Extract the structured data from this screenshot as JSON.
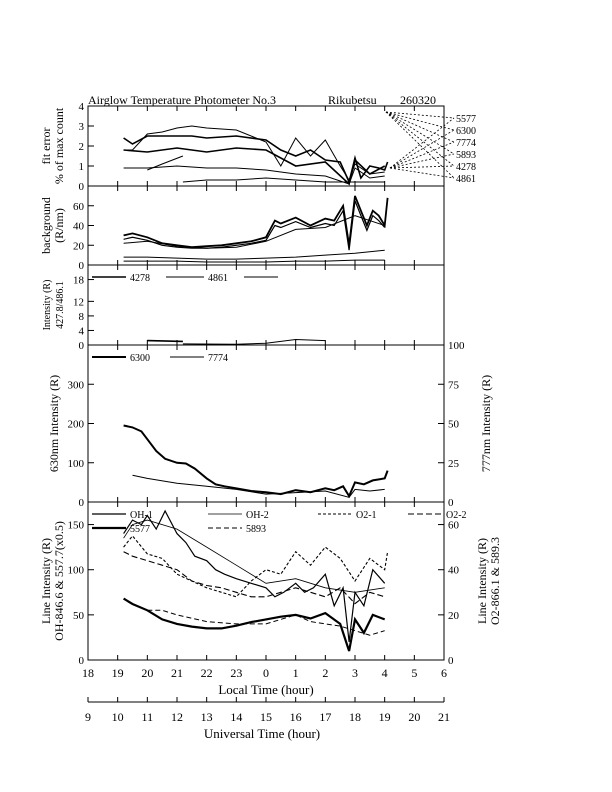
{
  "title": "Airglow Temperature Photometer No.3",
  "station": "Rikubetsu",
  "date_code": "260320",
  "local_time_axis": {
    "label": "Local Time (hour)",
    "ticks": [
      "18",
      "19",
      "20",
      "21",
      "22",
      "23",
      "0",
      "1",
      "2",
      "3",
      "4",
      "5",
      "6"
    ]
  },
  "ut_axis": {
    "label": "Universal Time (hour)",
    "ticks": [
      "9",
      "10",
      "11",
      "12",
      "13",
      "14",
      "15",
      "16",
      "17",
      "18",
      "19",
      "20",
      "21"
    ]
  },
  "chart_data": [
    {
      "type": "line",
      "panel": "fit-error",
      "ylabel": "fit error",
      "ylabel2": "% of max count",
      "ylim": [
        0,
        4
      ],
      "yticks": [
        "0",
        "1",
        "2",
        "3",
        "4"
      ],
      "legend": [
        "5577",
        "6300",
        "7774",
        "5893",
        "4278",
        "4861"
      ],
      "series": [
        {
          "name": "5577",
          "x": [
            19.2,
            19.5,
            20,
            21,
            21.5,
            22,
            23,
            0,
            0.5,
            1,
            1.5,
            2,
            2.5,
            2.8,
            3,
            3.2,
            3.5,
            3.8,
            4,
            4.1
          ],
          "y": [
            2.4,
            2.1,
            2.5,
            2.5,
            2.5,
            2.4,
            2.5,
            2.3,
            1.8,
            1.5,
            1.8,
            1.3,
            1.2,
            0.2,
            1.4,
            0.4,
            1.0,
            0.9,
            0.8,
            1.2
          ]
        },
        {
          "name": "6300",
          "x": [
            19.2,
            19.5,
            20,
            20.5,
            21,
            21.5,
            22,
            23,
            0,
            0.5,
            1,
            1.5,
            2,
            2.5,
            2.8,
            3,
            3.5,
            4
          ],
          "y": [
            1.8,
            1.8,
            2.6,
            2.7,
            2.9,
            3.0,
            2.9,
            2.8,
            2.2,
            1.0,
            2.4,
            1.5,
            2.3,
            1.0,
            0.3,
            1.1,
            0.6,
            0.7
          ]
        },
        {
          "name": "7774",
          "x": [
            19.2,
            20,
            21,
            22,
            23,
            0,
            1,
            2,
            2.8,
            3,
            3.5,
            4
          ],
          "y": [
            0.9,
            0.9,
            1.0,
            0.9,
            0.9,
            0.8,
            0.6,
            0.5,
            0.1,
            0.9,
            0.4,
            0.5
          ]
        },
        {
          "name": "5893",
          "x": [
            19.2,
            20,
            21,
            22,
            23,
            0,
            1,
            2,
            2.8,
            3,
            3.5,
            4
          ],
          "y": [
            1.8,
            1.7,
            1.9,
            1.7,
            1.9,
            1.8,
            1.0,
            1.2,
            0.1,
            1.3,
            0.6,
            1.0
          ]
        },
        {
          "name": "4278",
          "x": [
            20,
            20.5,
            21.2
          ],
          "y": [
            0.8,
            1.1,
            1.5
          ]
        },
        {
          "name": "4861",
          "x": [
            21.2,
            22,
            23,
            0,
            1,
            2,
            3,
            4
          ],
          "y": [
            0.2,
            0.3,
            0.3,
            0.4,
            0.3,
            0.2,
            0.2,
            0.2
          ]
        }
      ]
    },
    {
      "type": "line",
      "panel": "background",
      "ylabel": "background",
      "ylabel2": "(R/nm)",
      "ylim": [
        0,
        80
      ],
      "yticks": [
        "0",
        "20",
        "40",
        "60"
      ],
      "series": [
        {
          "name": "5577",
          "x": [
            19.2,
            19.5,
            20,
            20.5,
            21,
            21.5,
            22,
            22.5,
            23,
            23.5,
            0,
            0.3,
            0.5,
            1,
            1.5,
            2,
            2.3,
            2.6,
            2.8,
            3,
            3.2,
            3.4,
            3.6,
            3.8,
            4,
            4.1
          ],
          "y": [
            30,
            32,
            28,
            22,
            20,
            18,
            19,
            20,
            22,
            24,
            28,
            45,
            42,
            48,
            40,
            47,
            45,
            60,
            20,
            70,
            55,
            40,
            55,
            50,
            40,
            68
          ]
        },
        {
          "name": "6300",
          "x": [
            19.2,
            19.5,
            20,
            20.5,
            21,
            21.5,
            22,
            22.5,
            23,
            23.5,
            0,
            0.3,
            0.5,
            1,
            1.5,
            2,
            2.3,
            2.6,
            2.8,
            3,
            3.2,
            3.4,
            3.6,
            3.8,
            4
          ],
          "y": [
            26,
            28,
            25,
            20,
            18,
            17,
            17,
            18,
            20,
            22,
            25,
            40,
            38,
            44,
            38,
            42,
            40,
            55,
            15,
            65,
            50,
            35,
            50,
            45,
            38
          ]
        },
        {
          "name": "7774",
          "x": [
            19.2,
            20,
            21,
            22,
            23,
            0,
            1,
            2,
            3,
            4
          ],
          "y": [
            22,
            24,
            19,
            17,
            18,
            24,
            36,
            38,
            50,
            40
          ]
        },
        {
          "name": "4278",
          "x": [
            19.2,
            20,
            21,
            22,
            23,
            0,
            1,
            2,
            3,
            4
          ],
          "y": [
            8,
            8,
            7,
            6,
            6,
            7,
            8,
            10,
            12,
            15
          ]
        },
        {
          "name": "4861",
          "x": [
            19.2,
            20,
            21,
            22,
            23,
            0,
            1,
            2,
            3,
            4
          ],
          "y": [
            4,
            4,
            4,
            3,
            3,
            3,
            4,
            4,
            5,
            5
          ]
        }
      ]
    },
    {
      "type": "line",
      "panel": "intensity-4278-4861",
      "ylabel": "Intensity (R)",
      "ylabel2": "427.8/486.1",
      "ylim": [
        0,
        22
      ],
      "yticks": [
        "0",
        "4",
        "8",
        "12",
        "18"
      ],
      "legend": [
        "4278",
        "4861"
      ],
      "series": [
        {
          "name": "4278",
          "x": [
            20,
            21.2
          ],
          "y": [
            1.2,
            1.0
          ]
        },
        {
          "name": "4861",
          "x": [
            21.2,
            23,
            0,
            1,
            2
          ],
          "y": [
            0.3,
            0.2,
            0.5,
            1.5,
            1.2
          ]
        }
      ]
    },
    {
      "type": "line",
      "panel": "630-777",
      "ylabel": "630nm Intensity (R)",
      "ylabel_right": "777nm Intensity (R)",
      "ylim": [
        0,
        400
      ],
      "ylim_right": [
        0,
        100
      ],
      "yticks": [
        "0",
        "100",
        "200",
        "300"
      ],
      "yticks_right": [
        "0",
        "25",
        "50",
        "75",
        "100"
      ],
      "legend": [
        "6300",
        "7774"
      ],
      "series": [
        {
          "name": "6300",
          "x": [
            19.2,
            19.5,
            19.8,
            20,
            20.3,
            20.6,
            21,
            21.3,
            21.6,
            22,
            22.3,
            22.6,
            23,
            23.5,
            0,
            0.5,
            1,
            1.5,
            2,
            2.3,
            2.6,
            2.8,
            3,
            3.3,
            3.6,
            4,
            4.1
          ],
          "y": [
            195,
            190,
            180,
            160,
            130,
            110,
            100,
            98,
            85,
            60,
            45,
            40,
            35,
            28,
            25,
            20,
            30,
            25,
            35,
            30,
            40,
            15,
            50,
            45,
            55,
            60,
            80
          ]
        },
        {
          "name": "7774",
          "x": [
            19.5,
            20,
            21,
            22,
            23,
            0,
            1,
            2,
            2.8,
            3,
            3.5,
            4
          ],
          "y": [
            17,
            15,
            12,
            10,
            8,
            5,
            6,
            7,
            3,
            8,
            7,
            8
          ]
        }
      ]
    },
    {
      "type": "line",
      "panel": "line-intensity",
      "ylabel": "Line Intensity (R)",
      "ylabel2": "OH-846.6 & 557.7(x0.5)",
      "ylabel_right": "Line Intensity (R)",
      "ylabel_right2": "O2-866.1 & 589.3",
      "ylim": [
        0,
        175
      ],
      "ylim_right": [
        0,
        70
      ],
      "yticks": [
        "0",
        "50",
        "100",
        "150"
      ],
      "yticks_right": [
        "0",
        "20",
        "40",
        "60"
      ],
      "legend": [
        "OH-1",
        "OH-2",
        "O2-1",
        "O2-2",
        "5577",
        "5893"
      ],
      "series": [
        {
          "name": "OH-1",
          "x": [
            19.2,
            19.5,
            19.8,
            20,
            20.3,
            20.6,
            21,
            21.3,
            21.6,
            22,
            22.3,
            22.6,
            23,
            23.5,
            0,
            0.3,
            0.6,
            1,
            1.3,
            1.6,
            2,
            2.3,
            2.6,
            2.8,
            3,
            3.3,
            3.6,
            4
          ],
          "y": [
            140,
            155,
            150,
            160,
            145,
            165,
            140,
            130,
            115,
            110,
            100,
            95,
            90,
            85,
            80,
            70,
            75,
            85,
            75,
            80,
            95,
            60,
            80,
            20,
            75,
            60,
            100,
            85
          ]
        },
        {
          "name": "OH-2",
          "x": [
            19.2,
            19.5,
            20,
            21,
            22,
            23,
            0,
            1,
            2,
            3,
            4
          ],
          "y": [
            135,
            150,
            155,
            145,
            125,
            105,
            85,
            90,
            80,
            75,
            80
          ]
        },
        {
          "name": "O2-1",
          "x": [
            19.2,
            19.5,
            20,
            20.5,
            21,
            21.5,
            22,
            22.5,
            23,
            23.5,
            0,
            0.5,
            1,
            1.5,
            2,
            2.5,
            3,
            3.5,
            4,
            4.1
          ],
          "y": [
            50,
            55,
            47,
            45,
            38,
            35,
            32,
            30,
            28,
            35,
            40,
            38,
            48,
            42,
            50,
            45,
            35,
            45,
            40,
            48
          ]
        },
        {
          "name": "O2-2",
          "x": [
            19.2,
            19.5,
            20,
            20.5,
            21,
            21.5,
            22,
            22.5,
            23,
            23.5,
            0,
            0.5,
            1,
            1.5,
            2,
            2.5,
            3,
            3.5,
            4
          ],
          "y": [
            48,
            46,
            44,
            42,
            40,
            35,
            33,
            32,
            30,
            28,
            28,
            30,
            32,
            30,
            28,
            32,
            25,
            30,
            28
          ]
        },
        {
          "name": "5577",
          "x": [
            19.2,
            19.5,
            20,
            20.5,
            21,
            21.5,
            22,
            22.5,
            23,
            23.5,
            0,
            0.5,
            1,
            1.5,
            2,
            2.5,
            2.8,
            3,
            3.3,
            3.6,
            4
          ],
          "y": [
            68,
            62,
            55,
            45,
            40,
            37,
            35,
            35,
            38,
            42,
            45,
            48,
            50,
            46,
            52,
            40,
            10,
            45,
            30,
            50,
            45
          ]
        },
        {
          "name": "5893",
          "x": [
            20,
            20.5,
            21,
            22,
            23,
            0,
            0.5,
            1,
            1.5,
            2,
            2.5,
            3,
            3.5,
            4
          ],
          "y": [
            22,
            22,
            20,
            17,
            16,
            16,
            18,
            20,
            17,
            16,
            15,
            13,
            11,
            13
          ]
        }
      ]
    }
  ]
}
